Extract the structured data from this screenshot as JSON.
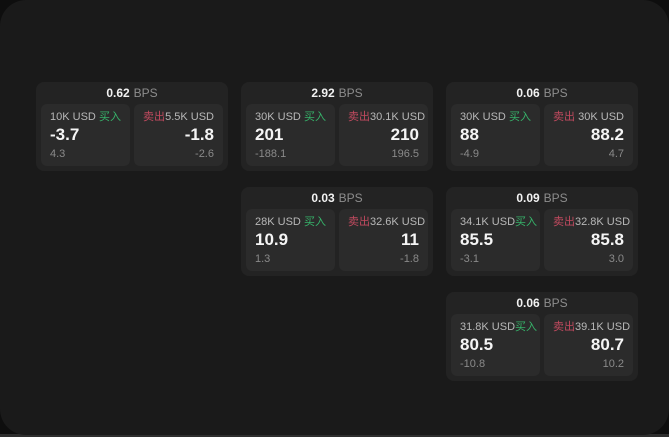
{
  "colors": {
    "buy_green": "#36b36a",
    "sell_red": "#c14a5f",
    "window_bg": "#1a1a1a",
    "card_bg": "#232323",
    "panel_bg": "#2b2b2b"
  },
  "labels": {
    "buy": "买入",
    "sell": "卖出",
    "bps": "BPS"
  },
  "cards": [
    {
      "bps": "0.62",
      "buy": {
        "amount": "10K USD",
        "value": "-3.7",
        "sub": "4.3"
      },
      "sell": {
        "amount": "5.5K USD",
        "value": "-1.8",
        "sub": "-2.6"
      }
    },
    {
      "bps": "2.92",
      "buy": {
        "amount": "30K USD",
        "value": "201",
        "sub": "-188.1"
      },
      "sell": {
        "amount": "30.1K USD",
        "value": "210",
        "sub": "196.5"
      }
    },
    {
      "bps": "0.06",
      "buy": {
        "amount": "30K USD",
        "value": "88",
        "sub": "-4.9"
      },
      "sell": {
        "amount": "30K USD",
        "value": "88.2",
        "sub": "4.7"
      }
    },
    {
      "bps": "0.03",
      "buy": {
        "amount": "28K USD",
        "value": "10.9",
        "sub": "1.3"
      },
      "sell": {
        "amount": "32.6K USD",
        "value": "11",
        "sub": "-1.8"
      }
    },
    {
      "bps": "0.09",
      "buy": {
        "amount": "34.1K USD",
        "value": "85.5",
        "sub": "-3.1"
      },
      "sell": {
        "amount": "32.8K USD",
        "value": "85.8",
        "sub": "3.0"
      }
    },
    {
      "bps": "0.06",
      "buy": {
        "amount": "31.8K USD",
        "value": "80.5",
        "sub": "-10.8"
      },
      "sell": {
        "amount": "39.1K USD",
        "value": "80.7",
        "sub": "10.2"
      }
    }
  ]
}
